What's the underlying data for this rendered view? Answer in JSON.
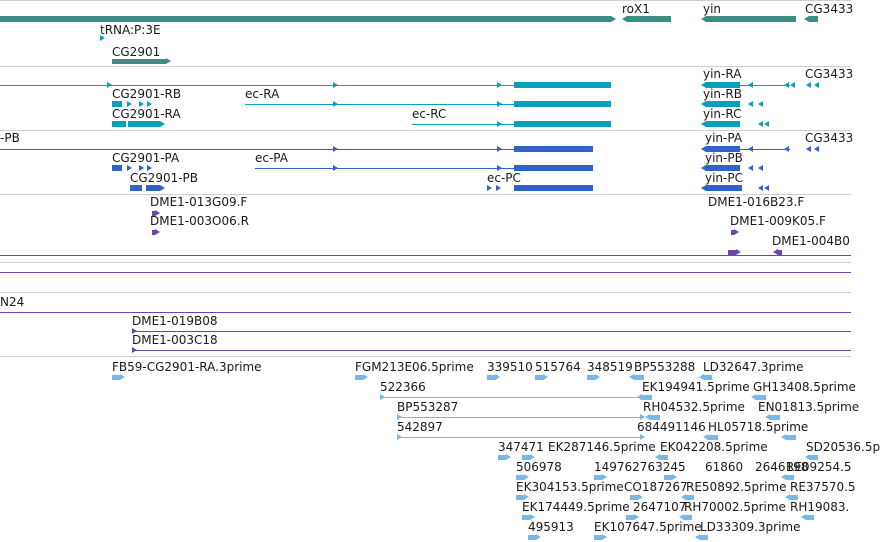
{
  "colors": {
    "teal": "#3f8c84",
    "cyan": "#0a9fc0",
    "blue": "#2e64c8",
    "purple": "#6e45b0",
    "light_blue": "#7ab8e4",
    "separator": "#cfcfcf",
    "text": "#1a1a1a"
  },
  "tracks": [
    {
      "name": "gene-track",
      "labels": [
        "roX1",
        "yin",
        "CG3433",
        "tRNA:P:3E",
        "CG2901"
      ]
    },
    {
      "name": "transcript-track-1",
      "labels": [
        "yin-RA",
        "CG3433",
        "CG2901-RB",
        "ec-RA",
        "yin-RB",
        "CG2901-RA",
        "ec-RC",
        "yin-RC"
      ]
    },
    {
      "name": "transcript-track-2",
      "labels": [
        "-PB",
        "yin-PA",
        "CG3433",
        "CG2901-PA",
        "ec-PA",
        "yin-PB",
        "CG2901-PB",
        "ec-PC",
        "yin-PC"
      ]
    },
    {
      "name": "clone-end-track",
      "labels": [
        "DME1-013G09.F",
        "DME1-016B23.F",
        "DME1-003O06.R",
        "DME1-009K05.F",
        "DME1-004B0"
      ]
    },
    {
      "name": "alignment-track-1",
      "labels": []
    },
    {
      "name": "alignment-track-2",
      "labels": [
        "N24",
        "DME1-019B08",
        "DME1-003C18"
      ]
    },
    {
      "name": "est-track",
      "labels": [
        "FB59-CG2901-RA.3prime",
        "FGM213E06.5prime",
        "339510",
        "515764",
        "348519",
        "BP553288",
        "LD32647.3prime",
        "522366",
        "EK194941.5prime",
        "GH13408.5prime",
        "BP553287",
        "RH04532.5prime",
        "EN01813.5prime",
        "542897",
        "684491146",
        "HL05718.5prime",
        "347471",
        "EK287146.5prime",
        "EK042208.5prime",
        "SD20536.5p",
        "506978",
        "149762763245",
        "61860",
        "2646198",
        "RE09254.5",
        "EK304153.5prime",
        "CO187267",
        "RE50892.5prime",
        "RE37570.5",
        "EK174449.5prime",
        "2647107",
        "RH70002.5prime",
        "RH19083.",
        "495913",
        "EK107647.5prime",
        "LD33309.3prime"
      ]
    }
  ]
}
